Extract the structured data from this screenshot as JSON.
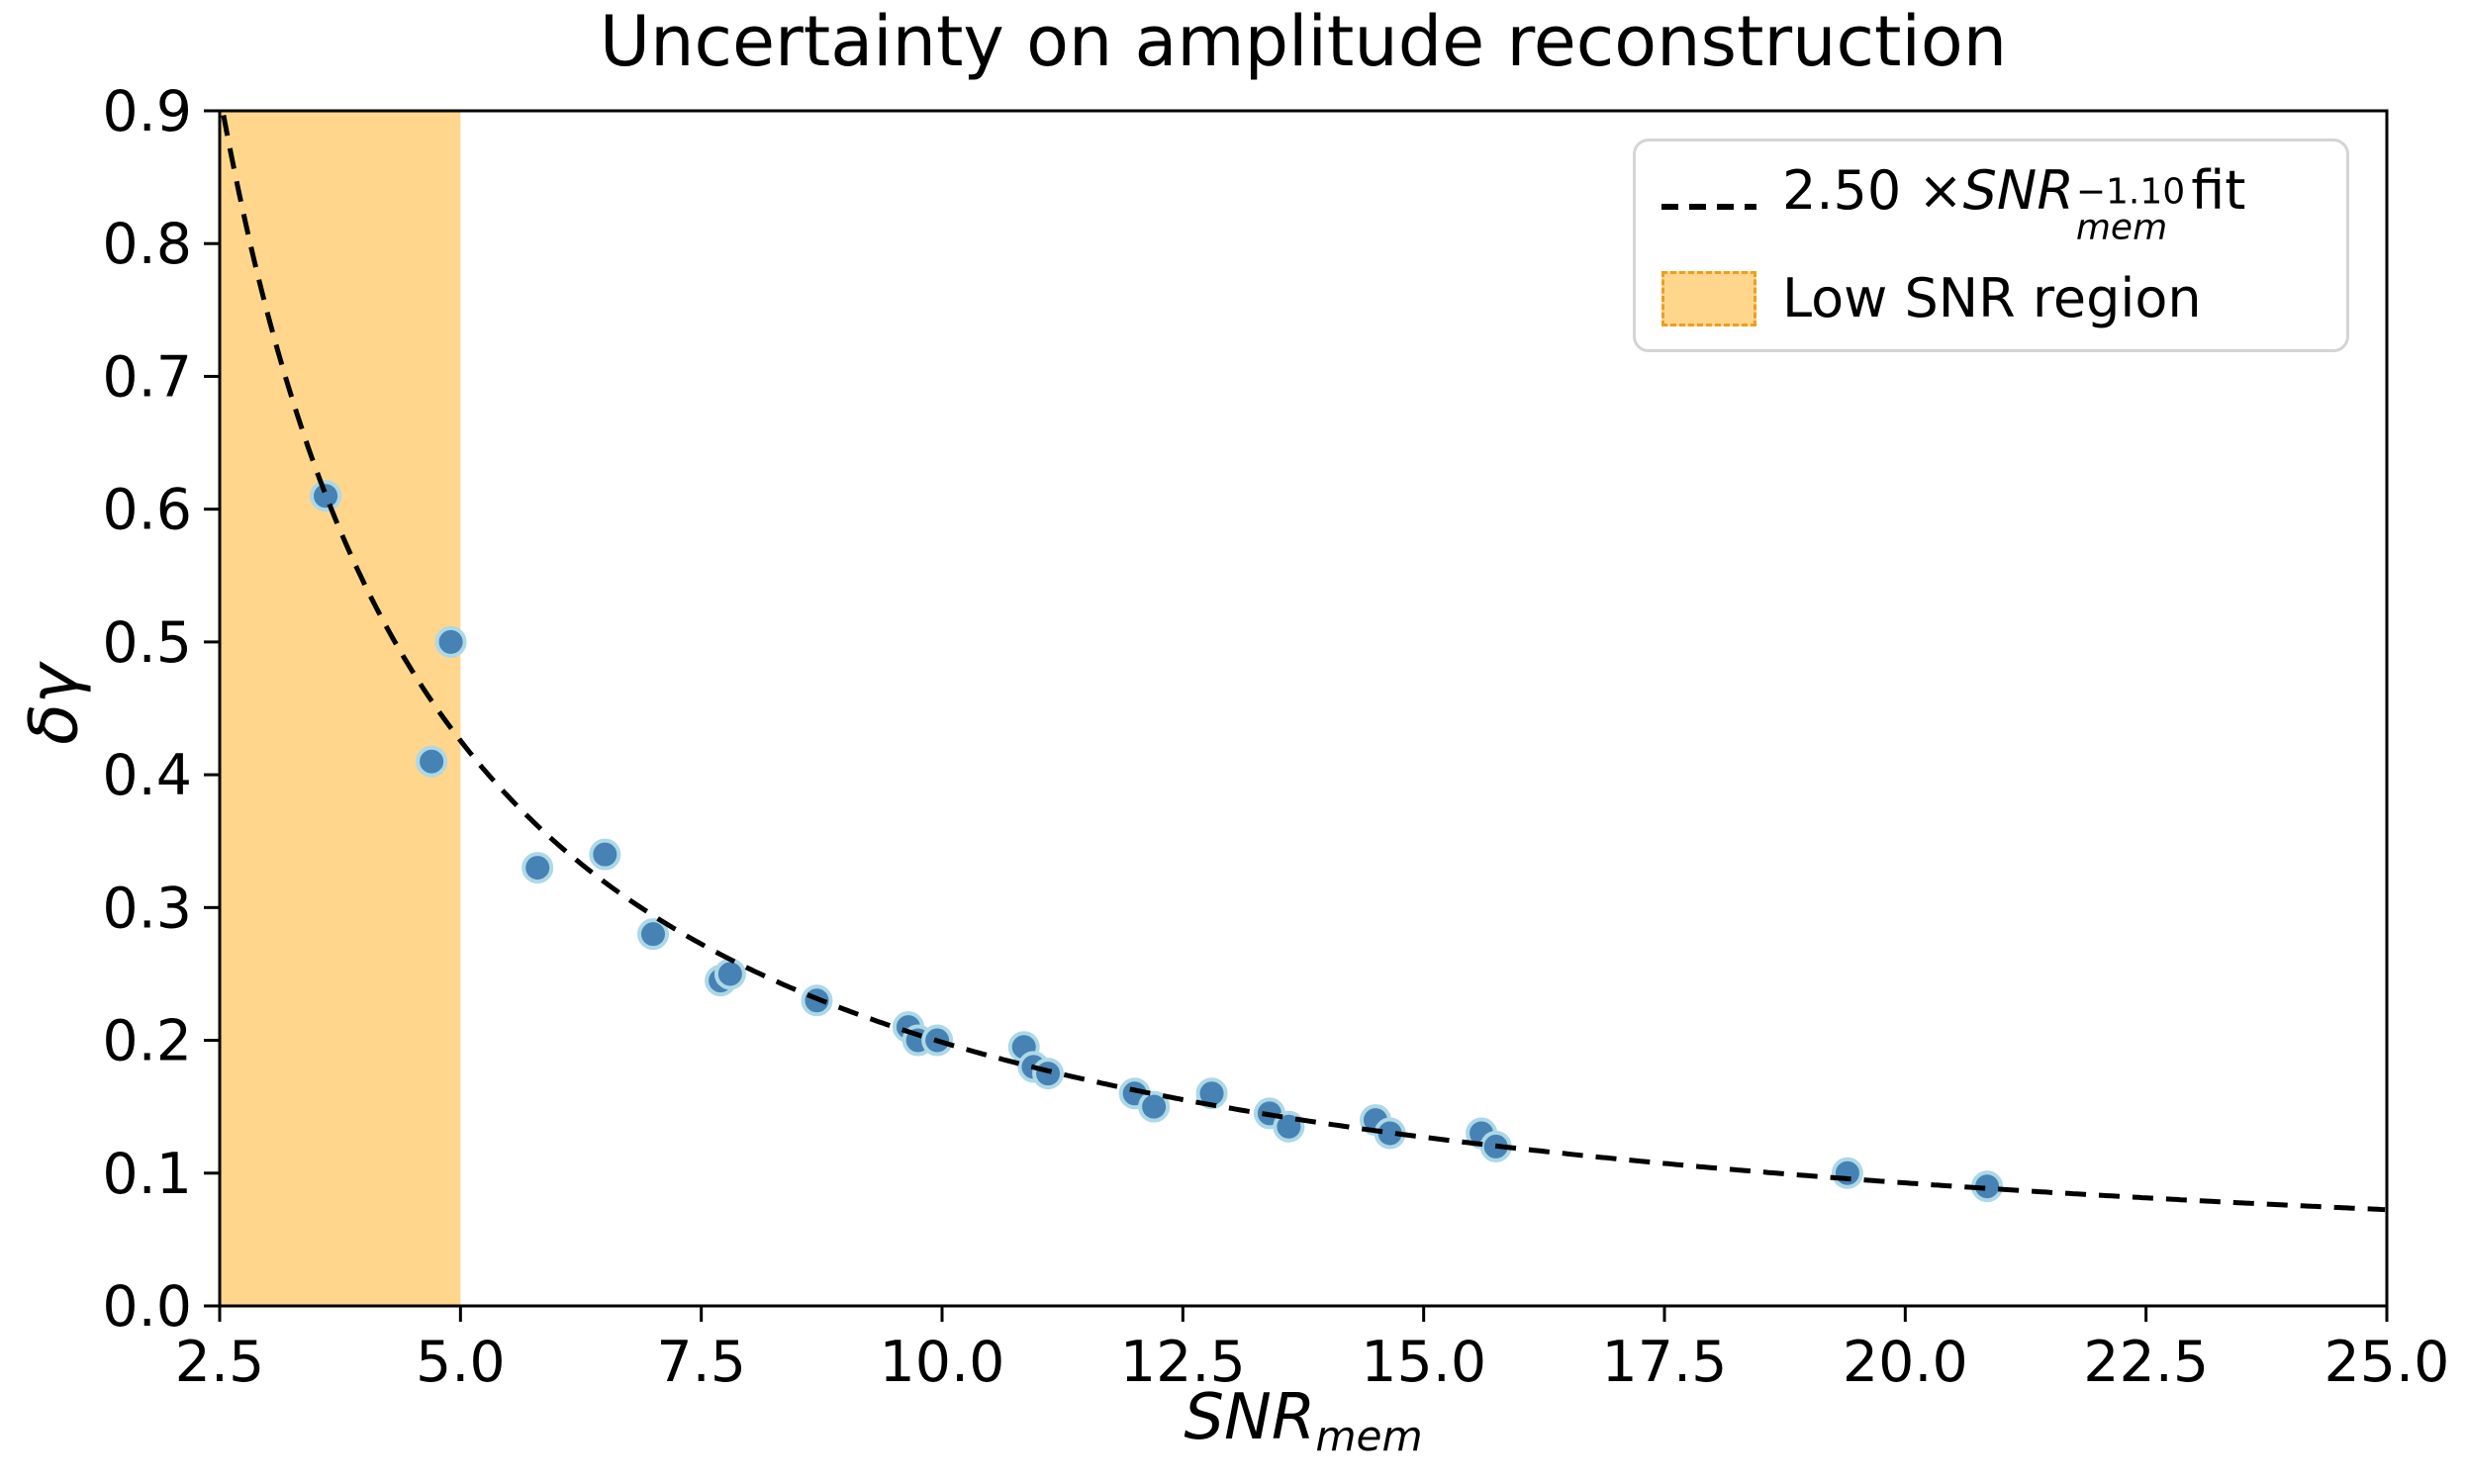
{
  "figure": {
    "title": "Uncertainty on amplitude reconstruction",
    "background_color": "#ffffff"
  },
  "axes": {
    "xlabel": {
      "base": "SNR",
      "sub": "mem"
    },
    "ylabel": "δγ",
    "x_tick_labels": [
      "2.5",
      "5.0",
      "7.5",
      "10.0",
      "12.5",
      "15.0",
      "17.5",
      "20.0",
      "22.5",
      "25.0"
    ],
    "y_tick_labels": [
      "0.0",
      "0.1",
      "0.2",
      "0.3",
      "0.4",
      "0.5",
      "0.6",
      "0.7",
      "0.8",
      "0.9"
    ]
  },
  "legend": {
    "fit_entry": {
      "prefix": "2.50 × ",
      "var": "SNR",
      "sup": "−1.10",
      "sub": "mem",
      "suffix": " fit"
    },
    "region_entry": "Low SNR region"
  },
  "chart_data": {
    "type": "scatter",
    "title": "Uncertainty on amplitude reconstruction",
    "xlabel": "SNR_mem",
    "ylabel": "δγ",
    "xlim": [
      2.5,
      25.0
    ],
    "ylim": [
      0.0,
      0.9
    ],
    "x_ticks": [
      2.5,
      5.0,
      7.5,
      10.0,
      12.5,
      15.0,
      17.5,
      20.0,
      22.5,
      25.0
    ],
    "y_ticks": [
      0.0,
      0.1,
      0.2,
      0.3,
      0.4,
      0.5,
      0.6,
      0.7,
      0.8,
      0.9
    ],
    "grid": false,
    "legend_position": "upper right",
    "points": [
      [
        3.6,
        0.61
      ],
      [
        4.7,
        0.41
      ],
      [
        4.9,
        0.5
      ],
      [
        5.8,
        0.33
      ],
      [
        6.5,
        0.34
      ],
      [
        7.0,
        0.28
      ],
      [
        7.7,
        0.245
      ],
      [
        7.8,
        0.25
      ],
      [
        8.7,
        0.23
      ],
      [
        9.65,
        0.21
      ],
      [
        9.75,
        0.2
      ],
      [
        9.95,
        0.2
      ],
      [
        10.85,
        0.195
      ],
      [
        10.95,
        0.18
      ],
      [
        11.1,
        0.175
      ],
      [
        12.0,
        0.16
      ],
      [
        12.2,
        0.15
      ],
      [
        12.8,
        0.16
      ],
      [
        13.4,
        0.145
      ],
      [
        13.6,
        0.135
      ],
      [
        14.5,
        0.14
      ],
      [
        14.65,
        0.13
      ],
      [
        15.6,
        0.13
      ],
      [
        15.75,
        0.12
      ],
      [
        19.4,
        0.1
      ],
      [
        20.85,
        0.09
      ]
    ],
    "fit": {
      "type": "power_law",
      "coefficient": 2.5,
      "exponent": -1.1,
      "label": "2.50 × SNR_mem^(−1.10) fit",
      "x_range": [
        2.5,
        25.0
      ],
      "line_style": "dashed"
    },
    "low_snr_region": {
      "x_min": 2.5,
      "x_max": 5.0,
      "label": "Low SNR region"
    },
    "colors": {
      "marker_fill": "#4682b4",
      "marker_edge": "#add8e6",
      "fit_line": "#000000",
      "region_fill": "rgba(255,165,0,0.45)",
      "spine": "#000000"
    }
  }
}
